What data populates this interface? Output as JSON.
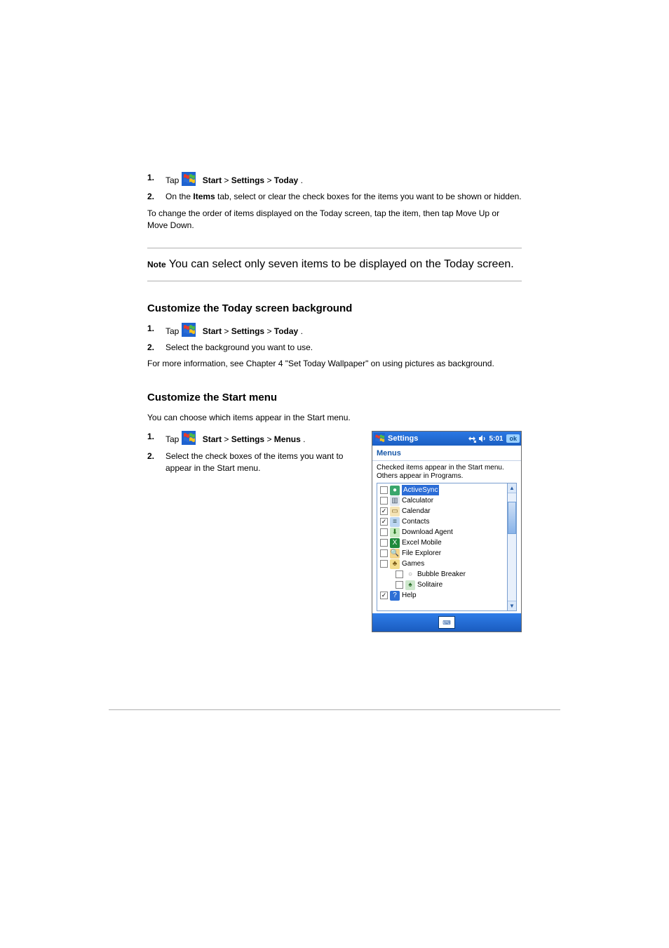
{
  "colors": {
    "titlebar_gradient_top": "#2b78e4",
    "titlebar_gradient_bottom": "#1b5fc2",
    "link_color": "#1858a8",
    "divider": "#b0b0b0",
    "page_bg": "#ffffff"
  },
  "body_text": {
    "step1_a": {
      "num": "1.",
      "before": "Tap ",
      "bold1": "Start",
      "gt1": " > ",
      "bold2": "Settings",
      "gt2": " > ",
      "bold3": "Today",
      "tail": "."
    },
    "step1_b": {
      "num": "2.",
      "text_before_bold": "On the ",
      "bold": "Items",
      "text_after_bold": " tab, select or clear the check boxes for the items you want to be shown or hidden."
    },
    "step1_info": "To change the order of items displayed on the Today screen, tap the item, then tap Move Up or Move Down.",
    "note_label": "Note",
    "note_text": " You can select only seven items to be displayed on the Today screen.",
    "h2a": "Customize the Today screen background",
    "step2_a": {
      "num": "1.",
      "before": "Tap ",
      "bold1": "Start",
      "gt1": " > ",
      "bold2": "Settings",
      "gt2": " > ",
      "bold3": "Today",
      "tail": "."
    },
    "step2_b_num": "2.",
    "step2_b_text": "Select the background you want to use.",
    "p_more": "For more information, see Chapter 4 \"Set Today Wallpaper\" on using pictures as background.",
    "h2b": "Customize the Start menu",
    "p_startmenu": "You can choose which items appear in the Start menu.",
    "step3_a": {
      "num": "1.",
      "before": "Tap ",
      "bold1": "Start",
      "gt1": " > ",
      "bold2": "Settings",
      "gt2": " > ",
      "bold3": "Menus",
      "tail": "."
    },
    "step3_b_num": "2.",
    "step3_b_text": "Select the check boxes of the items you want to appear in the Start menu."
  },
  "screenshot": {
    "titlebar": {
      "title": "Settings",
      "time": "5:01",
      "ok": "ok"
    },
    "header": "Menus",
    "desc_line1": "Checked items appear in the Start menu.",
    "desc_line2": "Others appear in Programs.",
    "items": [
      {
        "label": "ActiveSync",
        "checked": false,
        "selected": true,
        "indent": 0,
        "icon_bg": "#3aa66c",
        "icon_color": "#ffffff",
        "icon_char": "●"
      },
      {
        "label": "Calculator",
        "checked": false,
        "selected": false,
        "indent": 0,
        "icon_bg": "#dfe6ef",
        "icon_color": "#456",
        "icon_char": "▥"
      },
      {
        "label": "Calendar",
        "checked": true,
        "selected": false,
        "indent": 0,
        "icon_bg": "#f5e4b6",
        "icon_color": "#7a5b1a",
        "icon_char": "▭"
      },
      {
        "label": "Contacts",
        "checked": true,
        "selected": false,
        "indent": 0,
        "icon_bg": "#bcd6f2",
        "icon_color": "#355",
        "icon_char": "≡"
      },
      {
        "label": "Download Agent",
        "checked": false,
        "selected": false,
        "indent": 0,
        "icon_bg": "#c7eac1",
        "icon_color": "#2b7a24",
        "icon_char": "⬇"
      },
      {
        "label": "Excel Mobile",
        "checked": false,
        "selected": false,
        "indent": 0,
        "icon_bg": "#1f8a3b",
        "icon_color": "#ffffff",
        "icon_char": "X"
      },
      {
        "label": "File Explorer",
        "checked": false,
        "selected": false,
        "indent": 0,
        "icon_bg": "#f3d58a",
        "icon_color": "#7a5b1a",
        "icon_char": "🔍"
      },
      {
        "label": "Games",
        "checked": false,
        "selected": false,
        "indent": 0,
        "icon_bg": "#f3dd8d",
        "icon_color": "#7a5b1a",
        "icon_char": "♣"
      },
      {
        "label": "Bubble Breaker",
        "checked": false,
        "selected": false,
        "indent": 1,
        "icon_bg": "#ffffff",
        "icon_color": "#777",
        "icon_char": "○"
      },
      {
        "label": "Solitaire",
        "checked": false,
        "selected": false,
        "indent": 1,
        "icon_bg": "#cde7cc",
        "icon_color": "#2a6f2a",
        "icon_char": "♠"
      },
      {
        "label": "Help",
        "checked": true,
        "selected": false,
        "indent": 0,
        "icon_bg": "#2d6fd6",
        "icon_color": "#ffffff",
        "icon_char": "?"
      }
    ]
  }
}
